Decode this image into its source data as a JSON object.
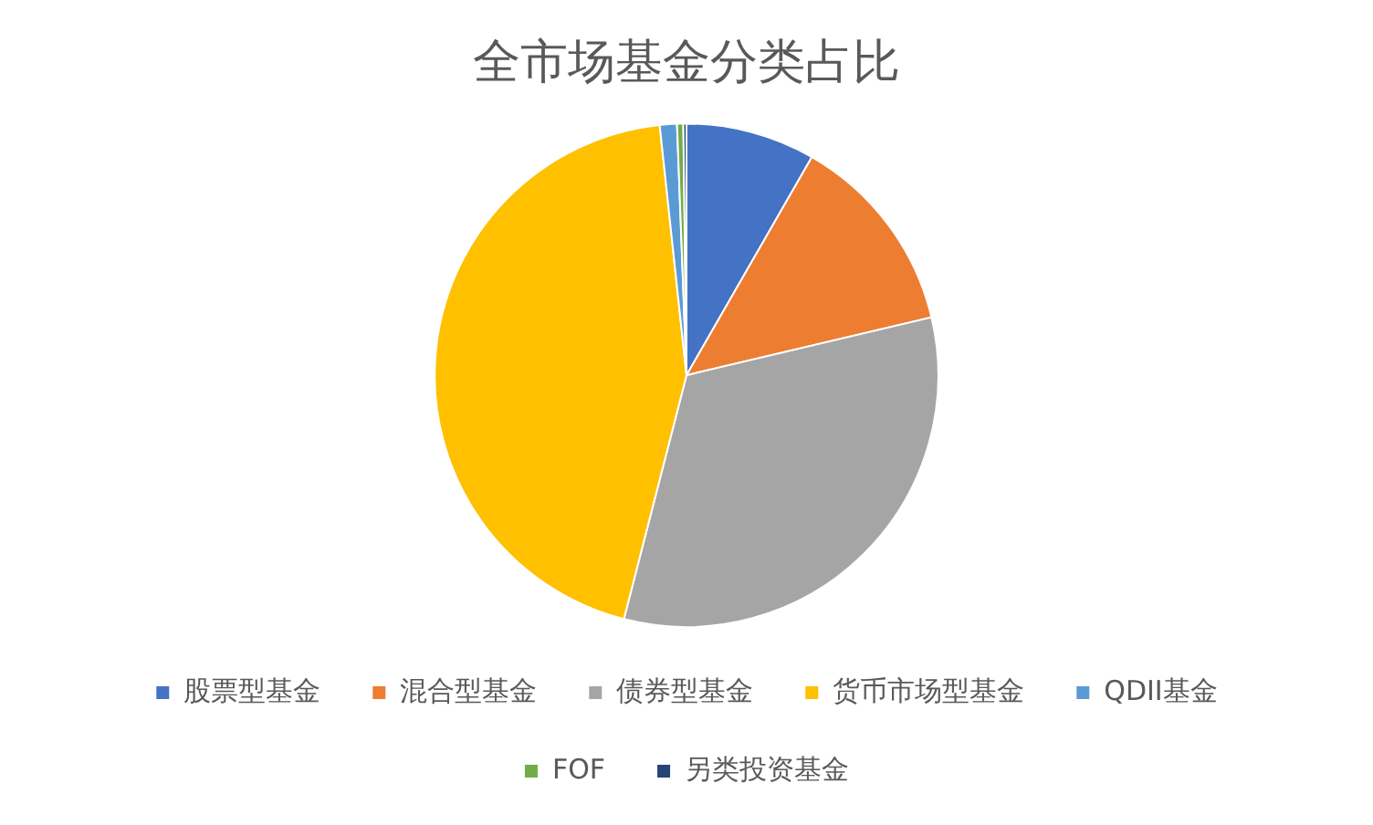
{
  "chart_data": {
    "type": "pie",
    "title": "全市场基金分类占比",
    "categories": [
      "股票型基金",
      "混合型基金",
      "债券型基金",
      "货币市场型基金",
      "QDII基金",
      "FOF",
      "另类投资基金"
    ],
    "values": [
      8.3,
      13,
      32.7,
      44.3,
      1.1,
      0.4,
      0.2
    ],
    "colors": [
      "#4472c4",
      "#ed7d31",
      "#a5a5a5",
      "#ffc000",
      "#5b9bd5",
      "#70ad47",
      "#264478"
    ],
    "legend": "bottom"
  }
}
